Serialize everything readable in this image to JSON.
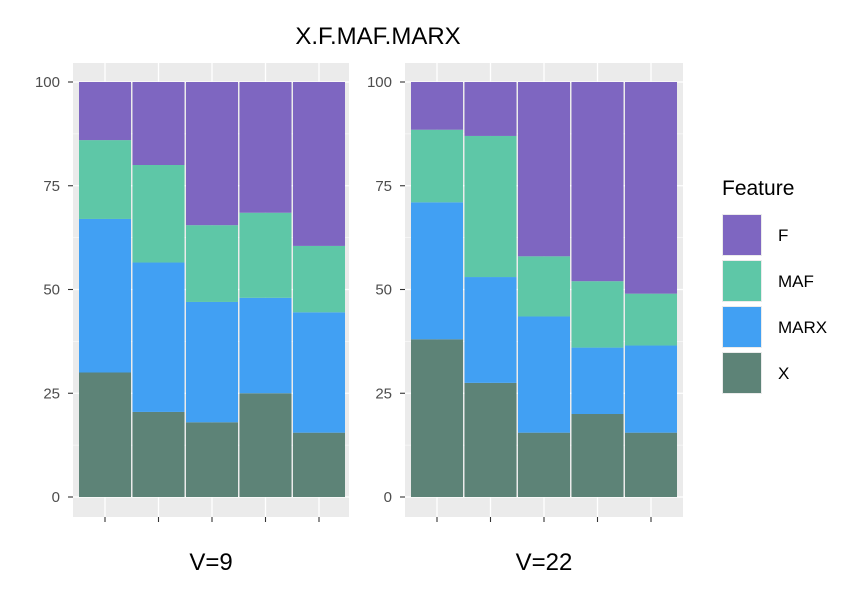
{
  "chart_data": {
    "type": "bar",
    "stacked": true,
    "title": "X.F.MAF.MARX",
    "ylim": [
      0,
      100
    ],
    "yticks": [
      0,
      25,
      50,
      75,
      100
    ],
    "grid": true,
    "legend": {
      "title": "Feature",
      "placement": "right",
      "entries": [
        "F",
        "MAF",
        "MARX",
        "X"
      ]
    },
    "colors": {
      "F": "#7e66c1",
      "MAF": "#5ec7a7",
      "MARX": "#41a0f3",
      "X": "#5d8377",
      "panel_bg": "#ebebeb",
      "grid": "#ffffff"
    },
    "stack_order_bottom_to_top": [
      "X",
      "MARX",
      "MAF",
      "F"
    ],
    "panels": [
      {
        "label": "V=9",
        "bars": [
          {
            "X": 30,
            "MARX": 37,
            "MAF": 19,
            "F": 14
          },
          {
            "X": 20.5,
            "MARX": 36,
            "MAF": 23.5,
            "F": 20
          },
          {
            "X": 18,
            "MARX": 29,
            "MAF": 18.5,
            "F": 34.5
          },
          {
            "X": 25,
            "MARX": 23,
            "MAF": 20.5,
            "F": 31.5
          },
          {
            "X": 15.5,
            "MARX": 29,
            "MAF": 16,
            "F": 39.5
          }
        ]
      },
      {
        "label": "V=22",
        "bars": [
          {
            "X": 38,
            "MARX": 33,
            "MAF": 17.5,
            "F": 11.5
          },
          {
            "X": 27.5,
            "MARX": 25.5,
            "MAF": 34,
            "F": 13
          },
          {
            "X": 15.5,
            "MARX": 28,
            "MAF": 14.5,
            "F": 42
          },
          {
            "X": 20,
            "MARX": 16,
            "MAF": 16,
            "F": 48
          },
          {
            "X": 15.5,
            "MARX": 21,
            "MAF": 12.5,
            "F": 51
          }
        ]
      }
    ]
  }
}
